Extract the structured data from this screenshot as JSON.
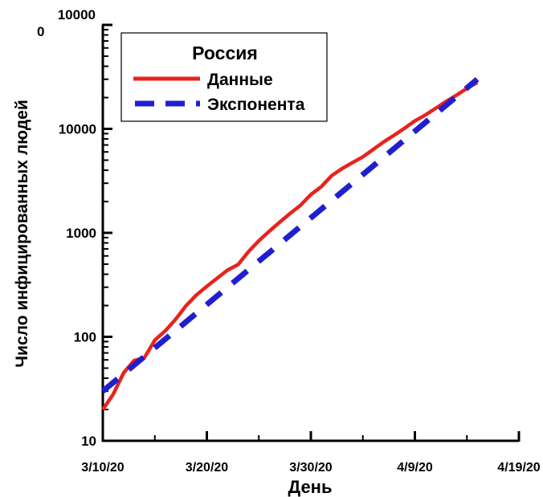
{
  "chart_data": {
    "type": "line",
    "x_scale": "date",
    "y_scale": "log",
    "xlabel": "День",
    "ylabel": "Число инфицированных людей",
    "xlim": [
      "2020-03-10",
      "2020-04-19"
    ],
    "ylim": [
      10,
      100000
    ],
    "x_ticks": [
      {
        "value": "2020-03-10",
        "label": "3/10/20"
      },
      {
        "value": "2020-03-20",
        "label": "3/20/20"
      },
      {
        "value": "2020-03-30",
        "label": "3/30/20"
      },
      {
        "value": "2020-04-09",
        "label": "4/9/20"
      },
      {
        "value": "2020-04-19",
        "label": "4/19/20"
      }
    ],
    "y_ticks": [
      {
        "value": 10,
        "label": "10"
      },
      {
        "value": 100,
        "label": "100"
      },
      {
        "value": 1000,
        "label": "1000"
      },
      {
        "value": 10000,
        "label": "10000"
      },
      {
        "value": 100000,
        "label_line1": "10000",
        "label_line2": "0"
      }
    ],
    "grid": false,
    "legend": {
      "title": "Россия",
      "placement": "top-left"
    },
    "series": [
      {
        "name": "Данные",
        "color": "#e8231d",
        "style": "solid",
        "x": [
          "2020-03-10",
          "2020-03-11",
          "2020-03-12",
          "2020-03-13",
          "2020-03-14",
          "2020-03-15",
          "2020-03-16",
          "2020-03-17",
          "2020-03-18",
          "2020-03-19",
          "2020-03-20",
          "2020-03-21",
          "2020-03-22",
          "2020-03-23",
          "2020-03-24",
          "2020-03-25",
          "2020-03-26",
          "2020-03-27",
          "2020-03-28",
          "2020-03-29",
          "2020-03-30",
          "2020-03-31",
          "2020-04-01",
          "2020-04-02",
          "2020-04-03",
          "2020-04-04",
          "2020-04-05",
          "2020-04-06",
          "2020-04-07",
          "2020-04-08",
          "2020-04-09",
          "2020-04-10",
          "2020-04-11",
          "2020-04-12",
          "2020-04-13",
          "2020-04-14",
          "2020-04-15"
        ],
        "y": [
          20,
          28,
          45,
          59,
          63,
          93,
          114,
          147,
          199,
          253,
          306,
          367,
          438,
          495,
          658,
          840,
          1036,
          1264,
          1534,
          1836,
          2337,
          2777,
          3548,
          4149,
          4731,
          5389,
          6343,
          7497,
          8672,
          10131,
          11917,
          13584,
          15770,
          18328,
          21102,
          24490,
          27938
        ]
      },
      {
        "name": "Экспонента",
        "color": "#1f1fd1",
        "style": "dashed",
        "x": [
          "2020-03-10",
          "2020-04-15"
        ],
        "y": [
          30,
          30000
        ]
      }
    ]
  }
}
